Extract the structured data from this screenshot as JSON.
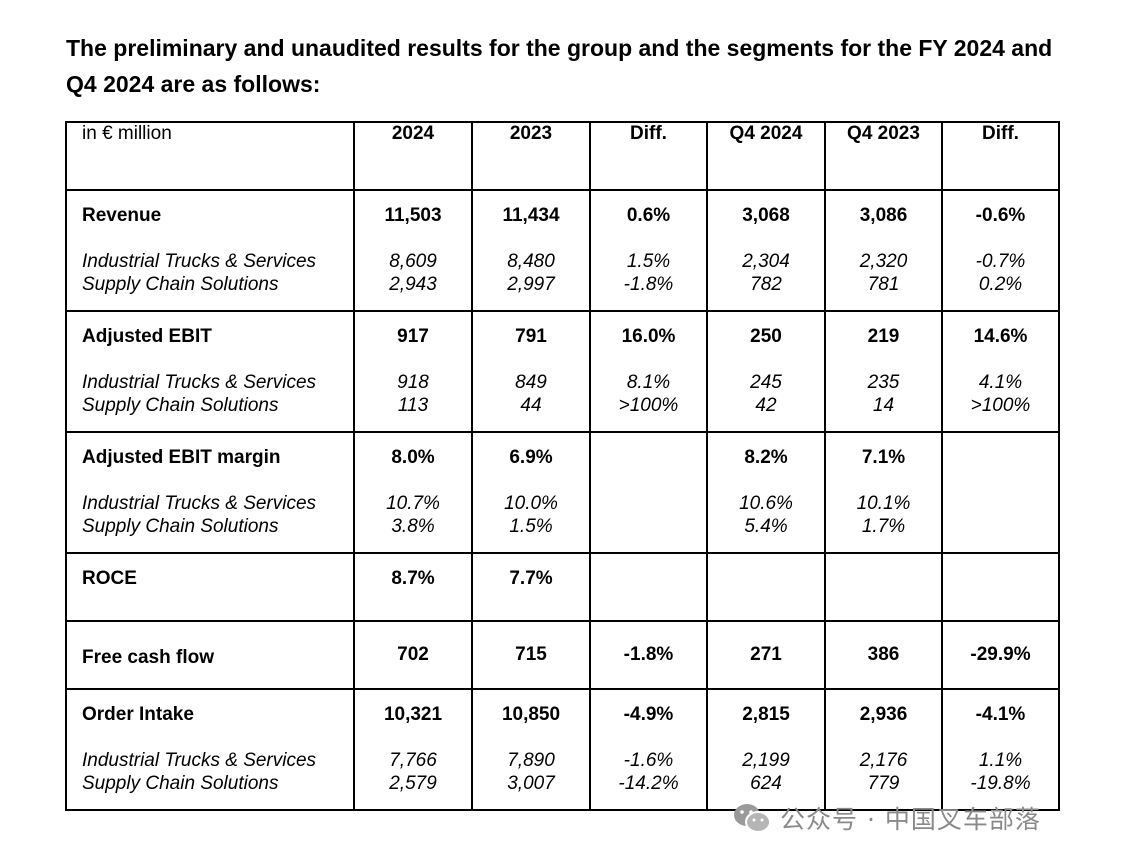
{
  "heading": "The preliminary and unaudited results for the group and the segments for the FY 2024 and Q4 2024 are as follows:",
  "table": {
    "unit_label": "in € million",
    "columns": [
      "2024",
      "2023",
      "Diff.",
      "Q4 2024",
      "Q4 2023",
      "Diff."
    ],
    "rows": [
      {
        "label": "Revenue",
        "values": [
          "11,503",
          "11,434",
          "0.6%",
          "3,068",
          "3,086",
          "-0.6%"
        ],
        "subs": [
          {
            "label": "Industrial Trucks & Services",
            "values": [
              "8,609",
              "8,480",
              "1.5%",
              "2,304",
              "2,320",
              "-0.7%"
            ]
          },
          {
            "label": "Supply Chain Solutions",
            "values": [
              "2,943",
              "2,997",
              "-1.8%",
              "782",
              "781",
              "0.2%"
            ]
          }
        ]
      },
      {
        "label": "Adjusted EBIT",
        "values": [
          "917",
          "791",
          "16.0%",
          "250",
          "219",
          "14.6%"
        ],
        "subs": [
          {
            "label": "Industrial Trucks & Services",
            "values": [
              "918",
              "849",
              "8.1%",
              "245",
              "235",
              "4.1%"
            ]
          },
          {
            "label": "Supply Chain Solutions",
            "values": [
              "113",
              "44",
              ">100%",
              "42",
              "14",
              ">100%"
            ]
          }
        ]
      },
      {
        "label": "Adjusted EBIT margin",
        "values": [
          "8.0%",
          "6.9%",
          "",
          "8.2%",
          "7.1%",
          ""
        ],
        "subs": [
          {
            "label": "Industrial Trucks & Services",
            "values": [
              "10.7%",
              "10.0%",
              "",
              "10.6%",
              "10.1%",
              ""
            ]
          },
          {
            "label": "Supply Chain Solutions",
            "values": [
              "3.8%",
              "1.5%",
              "",
              "5.4%",
              "1.7%",
              ""
            ]
          }
        ]
      },
      {
        "label": "ROCE",
        "values": [
          "8.7%",
          "7.7%",
          "",
          "",
          "",
          ""
        ],
        "subs": []
      },
      {
        "label": "Free cash flow",
        "values": [
          "702",
          "715",
          "-1.8%",
          "271",
          "386",
          "-29.9%"
        ],
        "subs": []
      },
      {
        "label": "Order Intake",
        "values": [
          "10,321",
          "10,850",
          "-4.9%",
          "2,815",
          "2,936",
          "-4.1%"
        ],
        "subs": [
          {
            "label": "Industrial Trucks & Services",
            "values": [
              "7,766",
              "7,890",
              "-1.6%",
              "2,199",
              "2,176",
              "1.1%"
            ]
          },
          {
            "label": "Supply Chain Solutions",
            "values": [
              "2,579",
              "3,007",
              "-14.2%",
              "624",
              "779",
              "-19.8%"
            ]
          }
        ]
      }
    ]
  },
  "watermark": {
    "text": "公众号 · 中国叉车部落",
    "icon": "wechat-icon",
    "color": "#8a8a8a"
  }
}
